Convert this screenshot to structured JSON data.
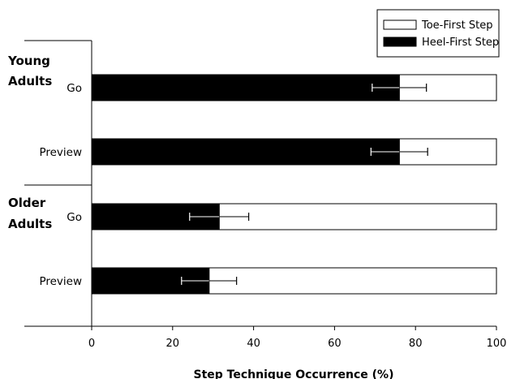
{
  "chart_data": {
    "type": "bar",
    "orientation": "horizontal",
    "stacked": true,
    "title": "",
    "xlabel": "Step Technique Occurrence (%)",
    "ylabel": "",
    "xlim": [
      0,
      100
    ],
    "x_ticks": [
      "0",
      "20",
      "40",
      "60",
      "80",
      "100"
    ],
    "groups": [
      {
        "label": "Young Adults",
        "lines": [
          "Young",
          "Adults"
        ]
      },
      {
        "label": "Older Adults",
        "lines": [
          "Older",
          "Adults"
        ]
      }
    ],
    "categories": [
      "Go",
      "Preview",
      "Go",
      "Preview"
    ],
    "category_groups": [
      "Young Adults",
      "Young Adults",
      "Older Adults",
      "Older Adults"
    ],
    "series": [
      {
        "name": "Heel-First Step",
        "color": "#000000",
        "values": [
          76,
          76,
          31.5,
          29
        ],
        "error": [
          6.7,
          7,
          7.3,
          6.8
        ]
      },
      {
        "name": "Toe-First Step",
        "color": "#ffffff",
        "values": [
          24,
          24,
          68.5,
          71
        ]
      }
    ],
    "legend": {
      "position": "top-right",
      "entries": [
        "Toe-First Step",
        "Heel-First Step"
      ]
    },
    "grid": false
  }
}
